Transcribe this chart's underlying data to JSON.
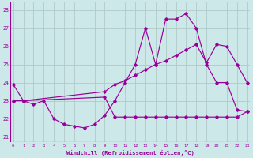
{
  "line1_x": [
    0,
    1,
    2,
    3,
    4,
    5,
    6,
    7,
    8,
    9,
    10,
    11,
    12,
    13,
    14,
    15,
    16,
    17,
    18,
    19,
    20,
    21,
    22,
    23
  ],
  "line1_y": [
    23.9,
    23.0,
    22.8,
    23.0,
    22.0,
    21.7,
    21.6,
    21.5,
    21.7,
    22.2,
    23.0,
    24.0,
    25.0,
    27.0,
    25.0,
    27.5,
    27.5,
    27.8,
    27.0,
    25.0,
    24.0,
    24.0,
    22.5,
    22.4
  ],
  "line2_x": [
    0,
    1,
    9,
    10,
    11,
    12,
    13,
    14,
    15,
    16,
    17,
    18,
    19,
    20,
    21,
    22,
    23
  ],
  "line2_y": [
    23.0,
    23.0,
    23.5,
    23.9,
    24.1,
    24.4,
    24.7,
    25.0,
    25.2,
    25.5,
    25.8,
    26.1,
    25.1,
    26.1,
    26.0,
    25.0,
    24.0
  ],
  "line3_x": [
    0,
    1,
    9,
    10,
    11,
    12,
    13,
    14,
    15,
    16,
    17,
    18,
    19,
    20,
    21,
    22,
    23
  ],
  "line3_y": [
    23.0,
    23.0,
    23.2,
    22.1,
    22.1,
    22.1,
    22.1,
    22.1,
    22.1,
    22.1,
    22.1,
    22.1,
    22.1,
    22.1,
    22.1,
    22.1,
    22.4
  ],
  "line_color": "#990099",
  "bg_color": "#cce8e8",
  "grid_color": "#b0c8c8",
  "ylabel_vals": [
    21,
    22,
    23,
    24,
    25,
    26,
    27,
    28
  ],
  "xlabel_vals": [
    0,
    1,
    2,
    3,
    4,
    5,
    6,
    7,
    8,
    9,
    10,
    11,
    12,
    13,
    14,
    15,
    16,
    17,
    18,
    19,
    20,
    21,
    22,
    23
  ],
  "xlim": [
    -0.3,
    23.3
  ],
  "ylim": [
    20.7,
    28.4
  ],
  "xlabel": "Windchill (Refroidissement éolien,°C)"
}
